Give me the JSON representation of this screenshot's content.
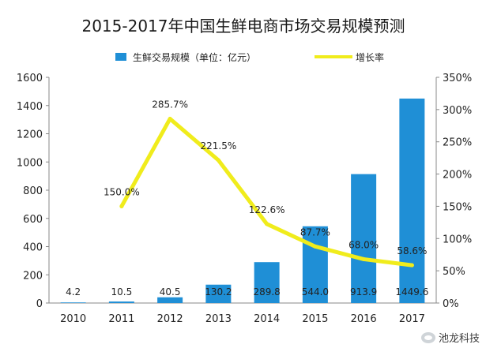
{
  "chart_data": {
    "type": "bar",
    "title": "2015-2017年中国生鲜电商市场交易规模预测",
    "categories": [
      "2010",
      "2011",
      "2012",
      "2013",
      "2014",
      "2015",
      "2016",
      "2017"
    ],
    "series": [
      {
        "name": "生鲜交易规模（单位：亿元）",
        "type": "bar",
        "axis": "left",
        "color": "#1f8fd6",
        "values": [
          4.2,
          10.5,
          40.5,
          130.2,
          289.8,
          544.0,
          913.9,
          1449.6
        ],
        "labels": [
          "4.2",
          "10.5",
          "40.5",
          "130.2",
          "289.8",
          "544.0",
          "913.9",
          "1449.6"
        ]
      },
      {
        "name": "增长率",
        "type": "line",
        "axis": "right",
        "color": "#f0ec1c",
        "x": [
          "2011",
          "2012",
          "2013",
          "2014",
          "2015",
          "2016",
          "2017"
        ],
        "values": [
          150.0,
          285.7,
          221.5,
          122.6,
          87.7,
          68.0,
          58.6
        ],
        "labels": [
          "150.0%",
          "285.7%",
          "221.5%",
          "122.6%",
          "87.7%",
          "68.0%",
          "58.6%"
        ]
      }
    ],
    "y_left": {
      "min": 0,
      "max": 1600,
      "ticks": [
        "0",
        "200",
        "400",
        "600",
        "800",
        "1000",
        "1200",
        "1400",
        "1600"
      ]
    },
    "y_right": {
      "min": 0,
      "max": 350,
      "ticks": [
        "0%",
        "50%",
        "100%",
        "150%",
        "200%",
        "250%",
        "300%",
        "350%"
      ]
    },
    "legend_position": "top",
    "grid": false
  },
  "watermark": {
    "text": "池龙科技"
  },
  "colors": {
    "bar": "#1f8fd6",
    "line": "#f0ec1c",
    "text": "#222222"
  }
}
